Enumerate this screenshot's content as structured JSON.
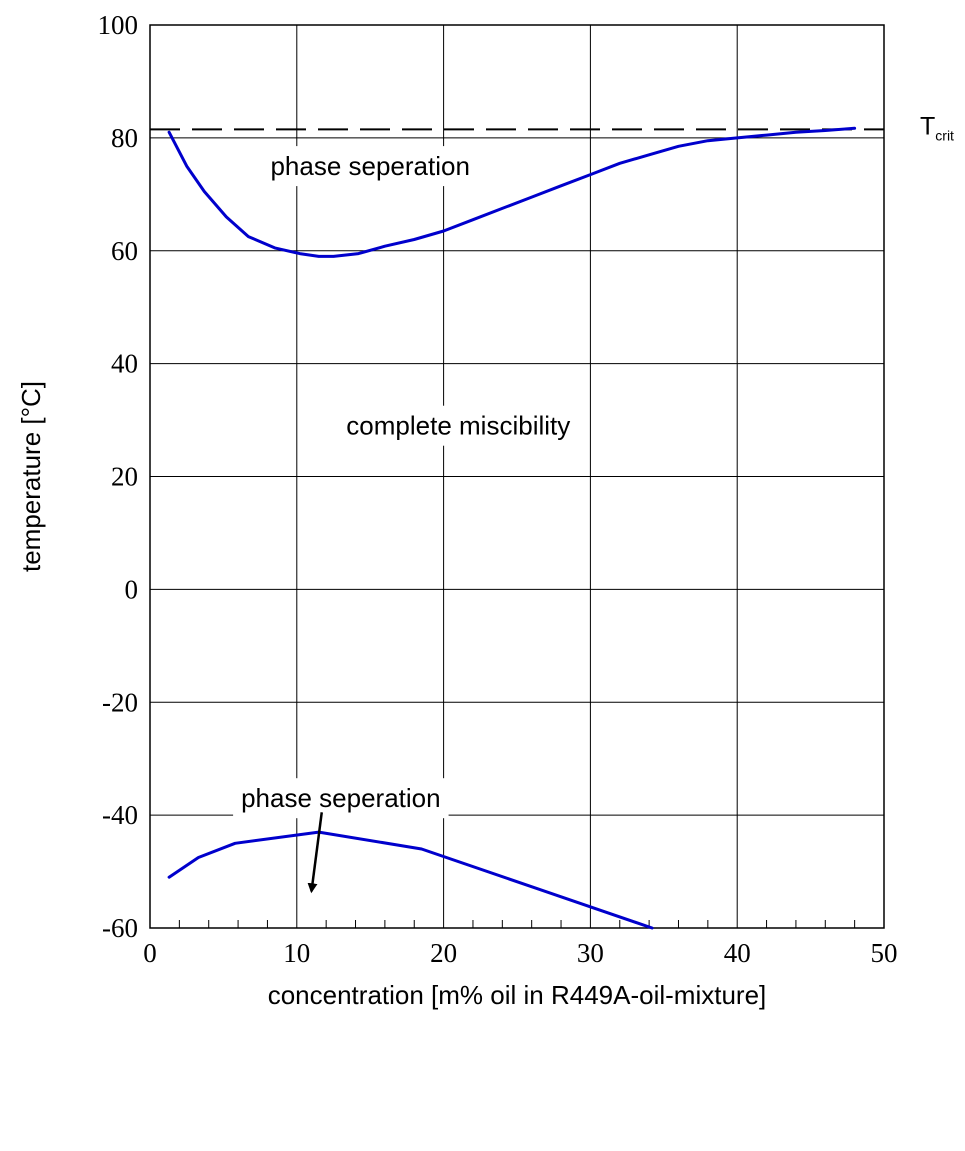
{
  "chart_data": {
    "type": "line",
    "xlabel": "concentration [m% oil in R449A-oil-mixture]",
    "ylabel": "temperature [°C]",
    "xlim": [
      0,
      50
    ],
    "ylim": [
      -60,
      100
    ],
    "xticks": [
      0,
      10,
      20,
      30,
      40,
      50
    ],
    "yticks": [
      100,
      80,
      60,
      40,
      20,
      0,
      -20,
      -40,
      -60
    ],
    "x_tick_labels": [
      "0",
      "10",
      "20",
      "30",
      "40",
      "50"
    ],
    "y_tick_labels": [
      "100",
      "80",
      "60",
      "40",
      "20",
      "0",
      "-20",
      "-40",
      "-60"
    ],
    "x_minor_step": 2,
    "grid": true,
    "line_color": "#0000cc",
    "series": [
      {
        "name": "",
        "x": [
          1.3,
          2.5,
          3.7,
          5.2,
          6.7,
          8.5,
          10.2,
          11.5,
          12.5,
          14.2,
          16.0,
          18.0,
          20.0,
          22.0,
          24.0,
          26.0,
          28.0,
          30.0,
          32.0,
          34.0,
          36.0,
          38.0,
          40.0,
          42.0,
          44.0,
          46.0,
          48.0
        ],
        "y": [
          81.0,
          75.0,
          70.5,
          66.0,
          62.5,
          60.5,
          59.5,
          59.0,
          59.0,
          59.5,
          60.8,
          62.0,
          63.5,
          65.5,
          67.5,
          69.5,
          71.5,
          73.5,
          75.5,
          77.0,
          78.5,
          79.5,
          80.0,
          80.5,
          81.0,
          81.3,
          81.7
        ]
      },
      {
        "name": "",
        "x": [
          1.3,
          3.3,
          5.8,
          11.5,
          18.5,
          34.2
        ],
        "y": [
          -51.0,
          -47.5,
          -45.0,
          -43.0,
          -46.0,
          -60.0
        ]
      }
    ],
    "reference_line": {
      "y": 81.5,
      "style": "dashed",
      "label_main": "T",
      "label_sub": "crit"
    },
    "annotations": [
      {
        "text": "phase seperation",
        "x": 15,
        "y": 75
      },
      {
        "text": "complete miscibility",
        "x": 21,
        "y": 29
      },
      {
        "text": "phase seperation",
        "x": 13,
        "y": -37
      }
    ],
    "arrow": {
      "from": [
        11.7,
        -39.5
      ],
      "to": [
        11.0,
        -53.5
      ]
    }
  }
}
